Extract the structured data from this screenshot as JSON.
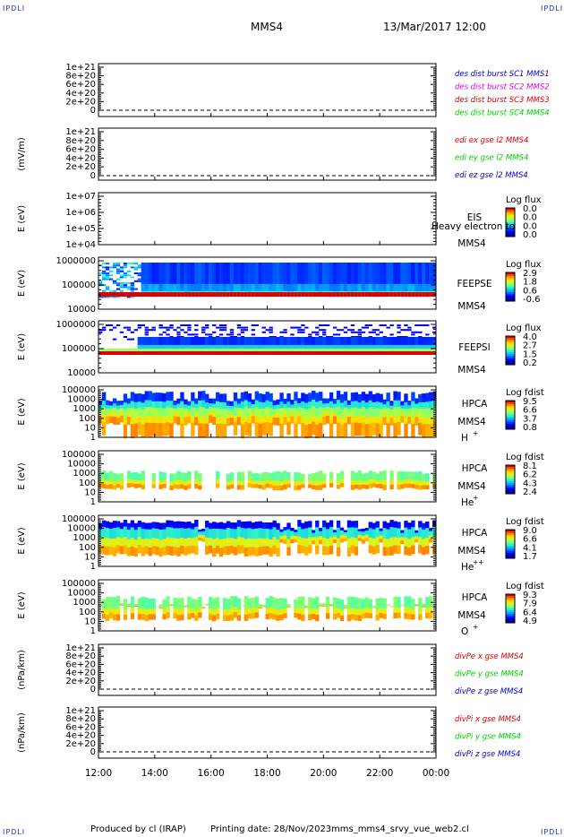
{
  "header": {
    "corner_tl": "IPDLI",
    "corner_tr": "IPDLI",
    "corner_bl": "IPDLI",
    "corner_br": "IPDLI",
    "spacecraft": "MMS4",
    "datetime": "13/Mar/2017 12:00"
  },
  "footer": {
    "produced": "Produced by cl (IRAP)",
    "printing": "Printing date: 28/Nov/2023",
    "file": "mms_mms4_srvy_vue_web2.cl"
  },
  "colors": {
    "red": "#e00000",
    "magenta": "#dd00dd",
    "green": "#00cc00",
    "blue": "#0000cc"
  },
  "chart_data": [
    {
      "id": "des",
      "type": "line",
      "ylabel": "",
      "yticks": [
        "1e+21",
        "8e+20",
        "6e+20",
        "4e+20",
        "2e+20",
        "0"
      ],
      "legend": [
        {
          "label": "des dist burst SC1 MMS1",
          "color": "#0000cc"
        },
        {
          "label": "des dist burst SC2 MMS2",
          "color": "#dd00dd"
        },
        {
          "label": "des dist burst SC3 MMS3",
          "color": "#e00000"
        },
        {
          "label": "des dist burst SC4 MMS4",
          "color": "#00cc00"
        }
      ]
    },
    {
      "id": "edi",
      "type": "line",
      "ylabel": "(mV/m)",
      "yticks": [
        "1e+21",
        "8e+20",
        "6e+20",
        "4e+20",
        "2e+20",
        "0"
      ],
      "legend": [
        {
          "label": "edi ex gse l2 MMS4",
          "color": "#e00000"
        },
        {
          "label": "edi ey gse l2 MMS4",
          "color": "#00cc00"
        },
        {
          "label": "edi ez gse l2 MMS4",
          "color": "#0000cc"
        }
      ]
    },
    {
      "id": "eis",
      "type": "heatmap",
      "ylabel": "E (eV)",
      "yticks": [
        "1e+07",
        "1e+06",
        "1e+05",
        "1e+04"
      ],
      "instrument": "EIS",
      "species_note": "Heavy electron to",
      "sc": "MMS4",
      "cbar_title": "Log flux",
      "cbar_ticks": [
        "0.0",
        "0.0",
        "0.0",
        "0.0"
      ],
      "data": []
    },
    {
      "id": "feepse",
      "type": "heatmap",
      "ylabel": "E (eV)",
      "yticks": [
        "1000000",
        "100000",
        "10000"
      ],
      "instrument": "FEEPSE",
      "sc": "MMS4",
      "cbar_title": "Log flux",
      "cbar_ticks": [
        "2.9",
        "1.8",
        "0.6",
        "-0.6"
      ]
    },
    {
      "id": "feepsi",
      "type": "heatmap",
      "ylabel": "E (eV)",
      "yticks": [
        "1000000",
        "100000",
        "10000"
      ],
      "instrument": "FEEPSI",
      "sc": "MMS4",
      "cbar_title": "Log flux",
      "cbar_ticks": [
        "4.0",
        "2.7",
        "1.5",
        "0.2"
      ]
    },
    {
      "id": "hpca_h",
      "type": "heatmap",
      "ylabel": "E (eV)",
      "yticks": [
        "100000",
        "10000",
        "1000",
        "100",
        "10",
        "1"
      ],
      "instrument": "HPCA",
      "sc": "MMS4",
      "species": "H",
      "charge": "+",
      "cbar_title": "Log fdist",
      "cbar_ticks": [
        "9.5",
        "6.6",
        "3.7",
        "0.8"
      ]
    },
    {
      "id": "hpca_he1",
      "type": "heatmap",
      "ylabel": "E (eV)",
      "yticks": [
        "100000",
        "10000",
        "1000",
        "100",
        "10",
        "1"
      ],
      "instrument": "HPCA",
      "sc": "MMS4",
      "species": "He",
      "charge": "+",
      "cbar_title": "Log fdist",
      "cbar_ticks": [
        "8.1",
        "6.2",
        "4.3",
        "2.4"
      ]
    },
    {
      "id": "hpca_he2",
      "type": "heatmap",
      "ylabel": "E (eV)",
      "yticks": [
        "100000",
        "10000",
        "1000",
        "100",
        "10",
        "1"
      ],
      "instrument": "HPCA",
      "sc": "MMS4",
      "species": "He",
      "charge": "++",
      "cbar_title": "Log fdist",
      "cbar_ticks": [
        "9.0",
        "6.6",
        "4.1",
        "1.7"
      ]
    },
    {
      "id": "hpca_o",
      "type": "heatmap",
      "ylabel": "E (eV)",
      "yticks": [
        "100000",
        "10000",
        "1000",
        "100",
        "10",
        "1"
      ],
      "instrument": "HPCA",
      "sc": "MMS4",
      "species": "O",
      "charge": "+",
      "cbar_title": "Log fdist",
      "cbar_ticks": [
        "9.3",
        "7.9",
        "6.4",
        "4.9"
      ]
    },
    {
      "id": "divpe",
      "type": "line",
      "ylabel": "(nPa/km)",
      "yticks": [
        "1e+21",
        "8e+20",
        "6e+20",
        "4e+20",
        "2e+20",
        "0"
      ],
      "legend": [
        {
          "label": "divPe x gse MMS4",
          "color": "#e00000"
        },
        {
          "label": "divPe y gse MMS4",
          "color": "#00cc00"
        },
        {
          "label": "divPe z gse MMS4",
          "color": "#0000cc"
        }
      ]
    },
    {
      "id": "divpi",
      "type": "line",
      "ylabel": "(nPa/km)",
      "yticks": [
        "1e+21",
        "8e+20",
        "6e+20",
        "4e+20",
        "2e+20",
        "0"
      ],
      "legend": [
        {
          "label": "divPi x gse MMS4",
          "color": "#e00000"
        },
        {
          "label": "divPi y gse MMS4",
          "color": "#00cc00"
        },
        {
          "label": "divPi z gse MMS4",
          "color": "#0000cc"
        }
      ]
    }
  ],
  "xaxis": {
    "ticks": [
      "12:00",
      "14:00",
      "16:00",
      "18:00",
      "20:00",
      "22:00",
      "00:00"
    ]
  }
}
